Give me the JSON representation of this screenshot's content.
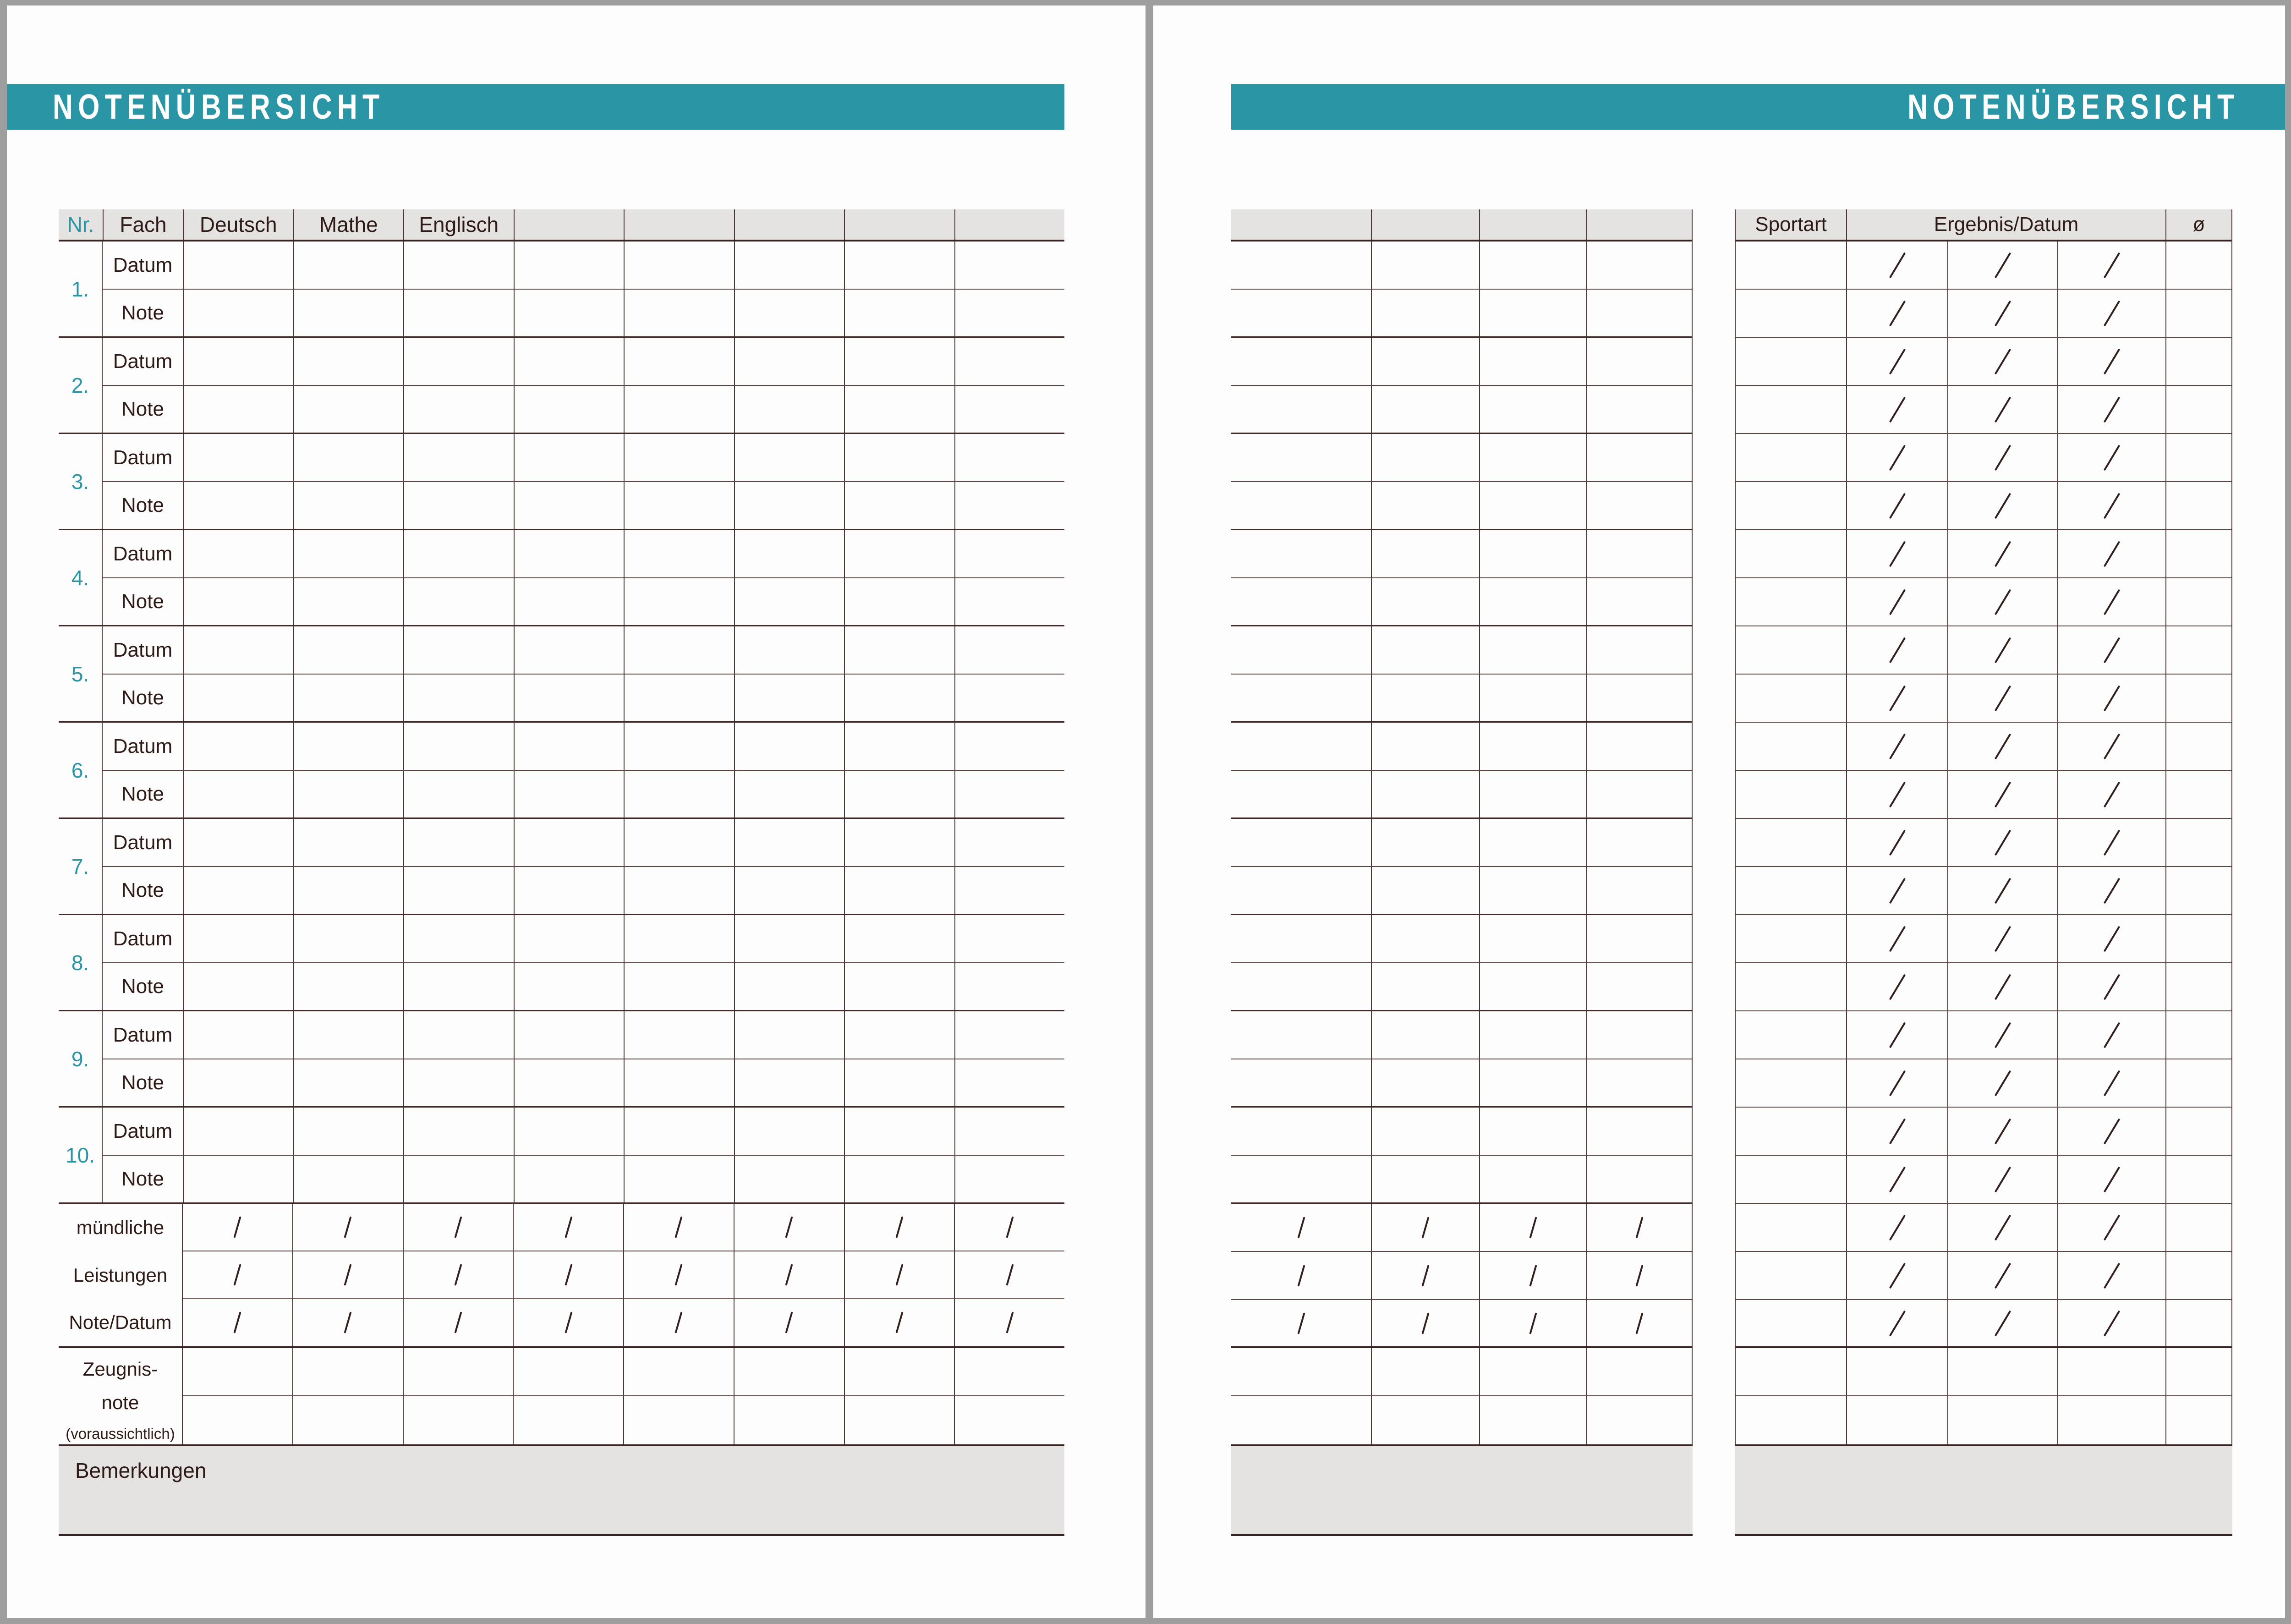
{
  "title": "NOTENÜBERSICHT",
  "colors": {
    "teal": "#2a96a5",
    "header_bg": "#e5e3e2",
    "line_dark": "#362322",
    "line_pair": "#3f2b2a",
    "line_mid": "#4c3736",
    "line_thin": "#5c4746",
    "text": "#2e1a16",
    "page_bg": "#fdfdfd",
    "frame_bg": "#9e9e9e"
  },
  "left_page": {
    "grades_table": {
      "column_headers": [
        "Nr.",
        "Fach",
        "Deutsch",
        "Mathe",
        "Englisch",
        "",
        "",
        "",
        "",
        ""
      ],
      "subject_column_count": 8,
      "row_numbers": [
        "1.",
        "2.",
        "3.",
        "4.",
        "5.",
        "6.",
        "7.",
        "8.",
        "9.",
        "10."
      ],
      "sub_row_labels": {
        "datum": "Datum",
        "note": "Note"
      },
      "muendliche_label_lines": [
        "mündliche",
        "Leistungen"
      ],
      "note_datum_label": "Note/Datum",
      "slash_row_count": 3,
      "zeugnis_label_lines": [
        "Zeugnis-",
        "note",
        "(voraussichtlich)"
      ],
      "zeugnis_row_count": 2
    },
    "bemerkungen_label": "Bemerkungen"
  },
  "right_page": {
    "continuation_table": {
      "column_count": 4,
      "header_labels": [
        "",
        "",
        "",
        ""
      ],
      "pair_count": 10,
      "slash_row_count": 3,
      "zeugnis_row_count": 2
    },
    "sport_table": {
      "sportart_header": "Sportart",
      "ergebnis_header": "Ergebnis/Datum",
      "average_header": "ø",
      "result_column_count": 3,
      "slash_row_count": 23,
      "empty_row_count": 2
    }
  }
}
